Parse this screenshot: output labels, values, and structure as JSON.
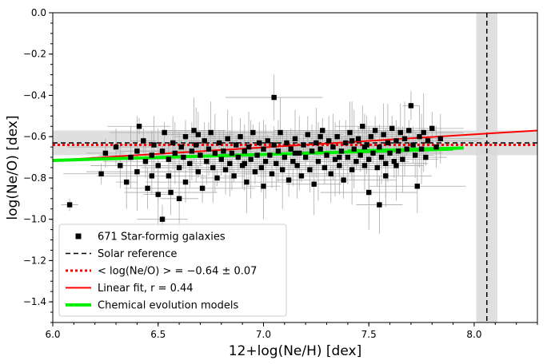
{
  "chart_data": {
    "type": "scatter",
    "xlabel": "12+log(Ne/H) [dex]",
    "ylabel": "log(Ne/O) [dex]",
    "xlim": [
      6.0,
      8.3
    ],
    "ylim": [
      -1.5,
      0.0
    ],
    "x_ticks": [
      6.0,
      6.5,
      7.0,
      7.5,
      8.0
    ],
    "x_tick_labels": [
      "6.0",
      "6.5",
      "7.0",
      "7.5",
      "8.0"
    ],
    "y_ticks": [
      0.0,
      -0.2,
      -0.4,
      -0.6,
      -0.8,
      -1.0,
      -1.2,
      -1.4
    ],
    "y_tick_labels": [
      "0.0",
      "−0.2",
      "−0.4",
      "−0.6",
      "−0.8",
      "−1.0",
      "−1.2",
      "−1.4"
    ],
    "grid": false,
    "legend_position": "lower-left",
    "legend": [
      {
        "label": "671 Star-formig galaxies",
        "marker": "square",
        "color": "#000000"
      },
      {
        "label": "Solar reference",
        "style": "dashed",
        "color": "#000000"
      },
      {
        "label": "< log(Ne/O) > = −0.64 ± 0.07",
        "style": "dotted",
        "color": "#ff0000"
      },
      {
        "label": "Linear fit, r = 0.44",
        "style": "solid",
        "color": "#ff0000"
      },
      {
        "label": "Chemical evolution models",
        "style": "solid-thick",
        "color": "#00ee00"
      }
    ],
    "solar_reference": {
      "x": 8.06,
      "x_band": [
        8.01,
        8.11
      ],
      "y": -0.63,
      "y_band": [
        -0.69,
        -0.57
      ]
    },
    "mean_line": {
      "y": -0.64,
      "err": 0.07
    },
    "linear_fit": {
      "x": [
        6.0,
        8.3
      ],
      "y": [
        -0.715,
        -0.57
      ]
    },
    "models": [
      {
        "x": [
          6.0,
          7.9
        ],
        "y": [
          -0.715,
          -0.66
        ]
      },
      {
        "x": [
          7.4,
          7.95
        ],
        "y": [
          -0.67,
          -0.655
        ]
      }
    ],
    "series": [
      {
        "name": "671 Star-formig galaxies",
        "color": "#000000",
        "error_color": "#aaaaaa",
        "points": [
          [
            6.08,
            -0.93
          ],
          [
            6.23,
            -0.78
          ],
          [
            6.25,
            -0.68
          ],
          [
            6.3,
            -0.65
          ],
          [
            6.32,
            -0.74
          ],
          [
            6.35,
            -0.82
          ],
          [
            6.37,
            -0.7
          ],
          [
            6.4,
            -0.67
          ],
          [
            6.4,
            -0.77
          ],
          [
            6.41,
            -0.55
          ],
          [
            6.43,
            -0.62
          ],
          [
            6.44,
            -0.72
          ],
          [
            6.45,
            -0.85
          ],
          [
            6.47,
            -0.69
          ],
          [
            6.48,
            -0.64
          ],
          [
            6.5,
            -0.88
          ],
          [
            6.5,
            -0.74
          ],
          [
            6.52,
            -0.67
          ],
          [
            6.53,
            -0.58
          ],
          [
            6.55,
            -0.71
          ],
          [
            6.55,
            -0.79
          ],
          [
            6.56,
            -0.87
          ],
          [
            6.57,
            -0.63
          ],
          [
            6.58,
            -0.68
          ],
          [
            6.6,
            -0.75
          ],
          [
            6.6,
            -0.9
          ],
          [
            6.61,
            -0.65
          ],
          [
            6.62,
            -0.7
          ],
          [
            6.63,
            -0.6
          ],
          [
            6.63,
            -0.82
          ],
          [
            6.65,
            -0.73
          ],
          [
            6.66,
            -0.67
          ],
          [
            6.67,
            -0.57
          ],
          [
            6.68,
            -0.64
          ],
          [
            6.69,
            -0.77
          ],
          [
            6.7,
            -0.69
          ],
          [
            6.71,
            -0.85
          ],
          [
            6.72,
            -0.62
          ],
          [
            6.73,
            -0.72
          ],
          [
            6.74,
            -0.66
          ],
          [
            6.75,
            -0.58
          ],
          [
            6.76,
            -0.75
          ],
          [
            6.77,
            -0.68
          ],
          [
            6.78,
            -0.8
          ],
          [
            6.79,
            -0.63
          ],
          [
            6.8,
            -0.71
          ],
          [
            6.81,
            -0.67
          ],
          [
            6.82,
            -0.76
          ],
          [
            6.83,
            -0.61
          ],
          [
            6.84,
            -0.73
          ],
          [
            6.85,
            -0.68
          ],
          [
            6.86,
            -0.79
          ],
          [
            6.87,
            -0.64
          ],
          [
            6.88,
            -0.7
          ],
          [
            6.89,
            -0.6
          ],
          [
            6.9,
            -0.74
          ],
          [
            6.91,
            -0.67
          ],
          [
            6.92,
            -0.82
          ],
          [
            6.93,
            -0.65
          ],
          [
            6.94,
            -0.71
          ],
          [
            6.95,
            -0.58
          ],
          [
            6.96,
            -0.77
          ],
          [
            6.97,
            -0.69
          ],
          [
            6.98,
            -0.63
          ],
          [
            6.99,
            -0.75
          ],
          [
            7.0,
            -0.66
          ],
          [
            7.0,
            -0.84
          ],
          [
            7.01,
            -0.72
          ],
          [
            7.02,
            -0.62
          ],
          [
            7.03,
            -0.69
          ],
          [
            7.04,
            -0.78
          ],
          [
            7.05,
            -0.64
          ],
          [
            7.05,
            -0.41
          ],
          [
            7.06,
            -0.73
          ],
          [
            7.07,
            -0.67
          ],
          [
            7.08,
            -0.58
          ],
          [
            7.09,
            -0.76
          ],
          [
            7.1,
            -0.7
          ],
          [
            7.11,
            -0.63
          ],
          [
            7.12,
            -0.81
          ],
          [
            7.13,
            -0.66
          ],
          [
            7.14,
            -0.72
          ],
          [
            7.15,
            -0.61
          ],
          [
            7.16,
            -0.74
          ],
          [
            7.17,
            -0.68
          ],
          [
            7.18,
            -0.79
          ],
          [
            7.19,
            -0.64
          ],
          [
            7.2,
            -0.7
          ],
          [
            7.21,
            -0.59
          ],
          [
            7.22,
            -0.76
          ],
          [
            7.23,
            -0.67
          ],
          [
            7.24,
            -0.83
          ],
          [
            7.25,
            -0.63
          ],
          [
            7.26,
            -0.72
          ],
          [
            7.27,
            -0.66
          ],
          [
            7.28,
            -0.57
          ],
          [
            7.29,
            -0.75
          ],
          [
            7.3,
            -0.69
          ],
          [
            7.31,
            -0.62
          ],
          [
            7.32,
            -0.78
          ],
          [
            7.33,
            -0.65
          ],
          [
            7.34,
            -0.71
          ],
          [
            7.35,
            -0.6
          ],
          [
            7.36,
            -0.74
          ],
          [
            7.37,
            -0.67
          ],
          [
            7.38,
            -0.81
          ],
          [
            7.39,
            -0.63
          ],
          [
            7.4,
            -0.7
          ],
          [
            7.41,
            -0.58
          ],
          [
            7.42,
            -0.76
          ],
          [
            7.43,
            -0.66
          ],
          [
            7.44,
            -0.72
          ],
          [
            7.45,
            -0.61
          ],
          [
            7.46,
            -0.69
          ],
          [
            7.47,
            -0.55
          ],
          [
            7.48,
            -0.74
          ],
          [
            7.49,
            -0.64
          ],
          [
            7.5,
            -0.71
          ],
          [
            7.5,
            -0.87
          ],
          [
            7.51,
            -0.6
          ],
          [
            7.52,
            -0.68
          ],
          [
            7.53,
            -0.57
          ],
          [
            7.54,
            -0.75
          ],
          [
            7.55,
            -0.65
          ],
          [
            7.56,
            -0.7
          ],
          [
            7.57,
            -0.59
          ],
          [
            7.58,
            -0.73
          ],
          [
            7.59,
            -0.63
          ],
          [
            7.6,
            -0.68
          ],
          [
            7.61,
            -0.56
          ],
          [
            7.62,
            -0.72
          ],
          [
            7.63,
            -0.62
          ],
          [
            7.64,
            -0.67
          ],
          [
            7.65,
            -0.58
          ],
          [
            7.66,
            -0.71
          ],
          [
            7.67,
            -0.61
          ],
          [
            7.68,
            -0.66
          ],
          [
            7.69,
            -0.57
          ],
          [
            7.7,
            -0.45
          ],
          [
            7.71,
            -0.64
          ],
          [
            7.72,
            -0.69
          ],
          [
            7.73,
            -0.84
          ],
          [
            7.74,
            -0.6
          ],
          [
            7.75,
            -0.66
          ],
          [
            7.76,
            -0.58
          ],
          [
            7.77,
            -0.7
          ],
          [
            7.78,
            -0.62
          ],
          [
            7.8,
            -0.56
          ],
          [
            7.82,
            -0.65
          ],
          [
            7.84,
            -0.61
          ],
          [
            7.55,
            -0.93
          ],
          [
            7.48,
            -0.65
          ],
          [
            7.36,
            -0.7
          ],
          [
            7.27,
            -0.6
          ],
          [
            7.15,
            -0.68
          ],
          [
            6.52,
            -1.0
          ],
          [
            6.47,
            -0.79
          ],
          [
            6.69,
            -0.59
          ],
          [
            6.91,
            -0.73
          ],
          [
            7.58,
            -0.79
          ],
          [
            7.63,
            -0.74
          ],
          [
            7.42,
            -0.62
          ]
        ]
      }
    ]
  }
}
